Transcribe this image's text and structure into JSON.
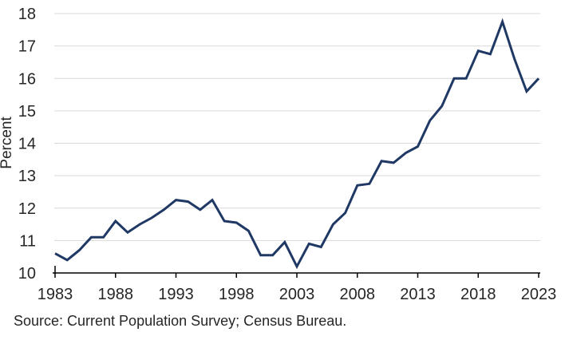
{
  "source_note": "Source: Current Population Survey; Census Bureau.",
  "chart_data": {
    "type": "line",
    "title": "",
    "xlabel": "",
    "ylabel": "Percent",
    "ylim": [
      10,
      18
    ],
    "y_ticks": [
      10,
      11,
      12,
      13,
      14,
      15,
      16,
      17,
      18
    ],
    "x_ticks": [
      1983,
      1988,
      1993,
      1998,
      2003,
      2008,
      2013,
      2018,
      2023
    ],
    "grid": "horizontal-only",
    "legend": "none",
    "line_color": "#1f3864",
    "grid_color": "#d9d9d9",
    "axis_color": "#000000",
    "text_color": "#262626",
    "series": [
      {
        "name": "Percent",
        "x": [
          1983,
          1984,
          1985,
          1986,
          1987,
          1988,
          1989,
          1990,
          1991,
          1992,
          1993,
          1994,
          1995,
          1996,
          1997,
          1998,
          1999,
          2000,
          2001,
          2002,
          2003,
          2004,
          2005,
          2006,
          2007,
          2008,
          2009,
          2010,
          2011,
          2012,
          2013,
          2014,
          2015,
          2016,
          2017,
          2018,
          2019,
          2020,
          2021,
          2022,
          2023
        ],
        "values": [
          10.6,
          10.4,
          10.7,
          11.1,
          11.1,
          11.6,
          11.25,
          11.5,
          11.7,
          11.95,
          12.25,
          12.2,
          11.95,
          12.25,
          11.6,
          11.55,
          11.3,
          10.55,
          10.55,
          10.95,
          10.2,
          10.9,
          10.8,
          11.5,
          11.85,
          12.7,
          12.75,
          13.45,
          13.4,
          13.7,
          13.9,
          14.7,
          15.15,
          16.0,
          16.0,
          16.85,
          16.75,
          17.75,
          16.6,
          15.6,
          16.0
        ]
      }
    ]
  }
}
